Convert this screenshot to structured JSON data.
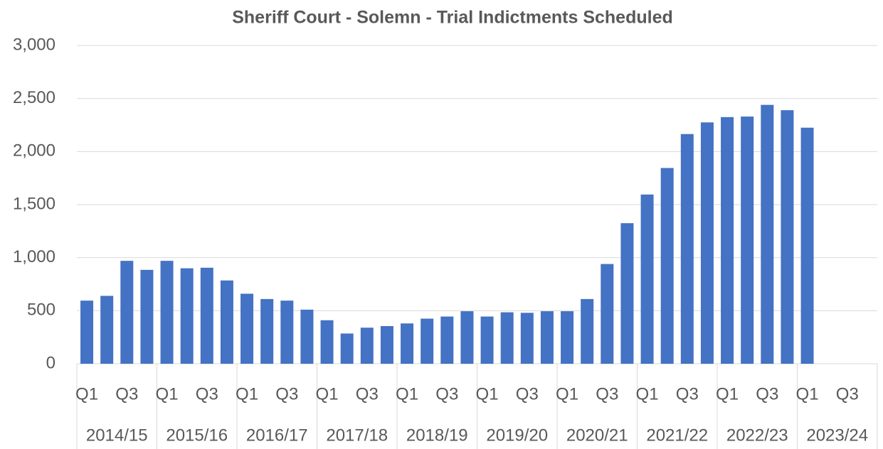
{
  "chart_data": {
    "type": "bar",
    "title": "Sheriff Court - Solemn - Trial Indictments Scheduled",
    "categories": [
      "Q1",
      null,
      "Q3",
      null,
      "Q1",
      null,
      "Q3",
      null,
      "Q1",
      null,
      "Q3",
      null,
      "Q1",
      null,
      "Q3",
      null,
      "Q1",
      null,
      "Q3",
      null,
      "Q1",
      null,
      "Q3",
      null,
      "Q1",
      null,
      "Q3",
      null,
      "Q1",
      null,
      "Q3",
      null,
      "Q1",
      null,
      "Q3",
      null,
      "Q1",
      null,
      "Q3",
      null
    ],
    "groups": [
      "2014/15",
      "2015/16",
      "2016/17",
      "2017/18",
      "2018/19",
      "2019/20",
      "2020/21",
      "2021/22",
      "2022/23",
      "2023/24"
    ],
    "values": [
      595,
      640,
      970,
      885,
      970,
      900,
      905,
      785,
      660,
      610,
      595,
      510,
      410,
      285,
      340,
      355,
      380,
      425,
      445,
      495,
      445,
      485,
      480,
      495,
      495,
      610,
      940,
      1325,
      1595,
      1845,
      2165,
      2275,
      2325,
      2330,
      2440,
      2390,
      2225,
      null,
      null,
      null
    ],
    "color": "#4472c4",
    "ylim": [
      0,
      3000
    ],
    "yticks": [
      0,
      500,
      {
        "value": 1000,
        "label": "1,000"
      },
      {
        "value": 1500,
        "label": "1,500"
      },
      {
        "value": 2000,
        "label": "2,000"
      },
      {
        "value": 2500,
        "label": "2,500"
      },
      {
        "value": 3000,
        "label": "3,000"
      }
    ],
    "grid": true
  }
}
